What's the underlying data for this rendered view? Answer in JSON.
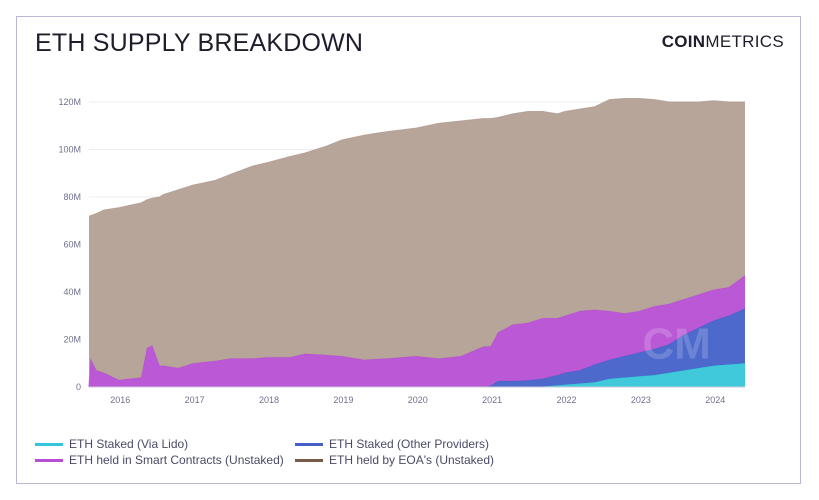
{
  "header": {
    "title": "ETH SUPPLY BREAKDOWN",
    "brand_bold": "COIN",
    "brand_light": "METRICS"
  },
  "chart_data": {
    "type": "area",
    "stacked": true,
    "title": "ETH SUPPLY BREAKDOWN",
    "xlabel": "",
    "ylabel": "",
    "xlim": [
      2015.6,
      2024.42
    ],
    "ylim": [
      0,
      120000000
    ],
    "yticks": [
      0,
      20000000,
      40000000,
      60000000,
      80000000,
      100000000,
      120000000
    ],
    "ytick_labels": [
      "0",
      "20M",
      "40M",
      "60M",
      "80M",
      "100M",
      "120M"
    ],
    "xticks": [
      2016,
      2017,
      2018,
      2019,
      2020,
      2021,
      2022,
      2023,
      2024
    ],
    "xtick_labels": [
      "2016",
      "2017",
      "2018",
      "2019",
      "2020",
      "2021",
      "2022",
      "2023",
      "2024"
    ],
    "grid": true,
    "legend_position": "bottom",
    "x": [
      2015.6,
      2015.62,
      2015.7,
      2015.8,
      2016.0,
      2016.3,
      2016.38,
      2016.45,
      2016.55,
      2016.6,
      2016.8,
      2017.0,
      2017.3,
      2017.5,
      2017.8,
      2018.0,
      2018.3,
      2018.5,
      2018.8,
      2019.0,
      2019.3,
      2019.6,
      2020.0,
      2020.3,
      2020.6,
      2020.9,
      2021.0,
      2021.1,
      2021.3,
      2021.5,
      2021.7,
      2021.9,
      2022.0,
      2022.2,
      2022.4,
      2022.6,
      2022.8,
      2023.0,
      2023.2,
      2023.4,
      2023.6,
      2023.8,
      2024.0,
      2024.2,
      2024.42
    ],
    "series": [
      {
        "name": "ETH Staked (Via Lido)",
        "color": "#35c6d9",
        "values": [
          0,
          0,
          0,
          0,
          0,
          0,
          0,
          0,
          0,
          0,
          0,
          0,
          0,
          0,
          0,
          0,
          0,
          0,
          0,
          0,
          0,
          0,
          0,
          0,
          0,
          0,
          0,
          0,
          0,
          0,
          0.2,
          0.7,
          1.0,
          1.5,
          2.0,
          3.5,
          4.0,
          4.5,
          5.0,
          6.0,
          7.0,
          8.0,
          9.0,
          9.5,
          10.0
        ]
      },
      {
        "name": "ETH Staked (Other Providers)",
        "color": "#4561c9",
        "values": [
          0,
          0,
          0,
          0,
          0,
          0,
          0,
          0,
          0,
          0,
          0,
          0,
          0,
          0,
          0,
          0,
          0,
          0,
          0,
          0,
          0,
          0,
          0,
          0,
          0,
          0,
          0.5,
          2.5,
          2.5,
          2.8,
          3.3,
          4.3,
          5.0,
          5.5,
          7.5,
          8.0,
          9.0,
          10.0,
          11.0,
          12.0,
          15.0,
          17.0,
          19.0,
          20.5,
          23.0
        ]
      },
      {
        "name": "ETH held in Smart Contracts (Unstaked)",
        "color": "#b64fd3",
        "values": [
          0,
          12.0,
          7.0,
          6.0,
          3.0,
          4.0,
          16.5,
          17.5,
          9.0,
          9.0,
          8.0,
          10.0,
          11.0,
          12.0,
          12.0,
          12.5,
          12.5,
          14.0,
          13.5,
          13.0,
          11.5,
          12.0,
          13.0,
          12.0,
          13.0,
          17.0,
          16.7,
          20.5,
          23.8,
          24.2,
          25.5,
          24.0,
          24.0,
          25.0,
          23.0,
          20.5,
          18.0,
          17.5,
          18.0,
          17.0,
          15.0,
          14.0,
          13.0,
          12.0,
          14.0
        ]
      },
      {
        "name": "ETH held by EOA's (Unstaked)",
        "color": "#b4a095",
        "values": [
          72.0,
          60.1,
          66.0,
          68.5,
          72.5,
          73.5,
          62.3,
          62.0,
          71.0,
          72.0,
          75.0,
          75.0,
          76.0,
          77.5,
          81.0,
          82.0,
          84.5,
          84.5,
          88.0,
          91.0,
          94.5,
          95.5,
          96.0,
          99.0,
          99.0,
          96.0,
          95.8,
          90.5,
          88.7,
          89.0,
          87.0,
          86.0,
          86.0,
          85.0,
          85.5,
          89.0,
          90.5,
          89.5,
          87.0,
          85.0,
          83.0,
          81.0,
          79.5,
          78.0,
          73.0
        ]
      }
    ],
    "value_units": "millions ETH",
    "watermark": "CM"
  },
  "legend": {
    "items": [
      {
        "label": "ETH Staked (Via Lido)",
        "color": "#35c6d9"
      },
      {
        "label": "ETH Staked (Other Providers)",
        "color": "#4561c9"
      },
      {
        "label": "ETH held in Smart Contracts (Unstaked)",
        "color": "#b64fd3"
      },
      {
        "label": "ETH held by EOA's (Unstaked)",
        "color": "#7a5a48"
      }
    ]
  }
}
